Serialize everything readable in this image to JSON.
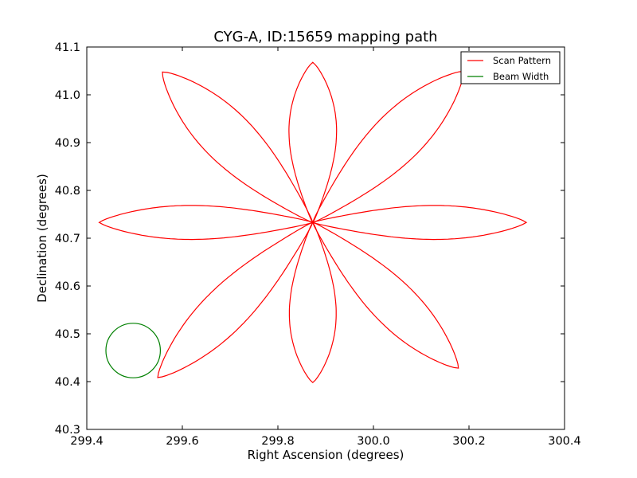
{
  "chart_data": {
    "type": "line",
    "title": "CYG-A, ID:15659 mapping path",
    "xlabel": "Right Ascension (degrees)",
    "ylabel": "Declination (degrees)",
    "xlim": [
      299.4,
      300.4
    ],
    "ylim": [
      40.3,
      41.1
    ],
    "xticks": [
      "299.4",
      "299.6",
      "299.8",
      "300.0",
      "300.2",
      "300.4"
    ],
    "yticks": [
      "40.3",
      "40.4",
      "40.5",
      "40.6",
      "40.7",
      "40.8",
      "40.9",
      "41.0",
      "41.1"
    ],
    "grid": false,
    "legend": {
      "placement": "top-right"
    },
    "series": [
      {
        "name": "Scan Pattern",
        "color": "#ff0000",
        "center": [
          299.873,
          40.733
        ],
        "petals": [
          {
            "angle_deg": 90,
            "length_deg": 0.335,
            "half_width_deg": 0.063
          },
          {
            "angle_deg": 45,
            "length_deg": 0.447,
            "half_width_deg": 0.066
          },
          {
            "angle_deg": 0,
            "length_deg": 0.447,
            "half_width_deg": 0.045
          },
          {
            "angle_deg": -45,
            "length_deg": 0.431,
            "half_width_deg": 0.059
          },
          {
            "angle_deg": -90,
            "length_deg": 0.335,
            "half_width_deg": 0.062
          },
          {
            "angle_deg": -135,
            "length_deg": 0.459,
            "half_width_deg": 0.059
          },
          {
            "angle_deg": 180,
            "length_deg": 0.447,
            "half_width_deg": 0.045
          },
          {
            "angle_deg": 135,
            "length_deg": 0.445,
            "half_width_deg": 0.067
          }
        ]
      },
      {
        "name": "Beam Width",
        "color": "#008000",
        "center": [
          299.497,
          40.465
        ],
        "radius": 0.057
      }
    ]
  }
}
